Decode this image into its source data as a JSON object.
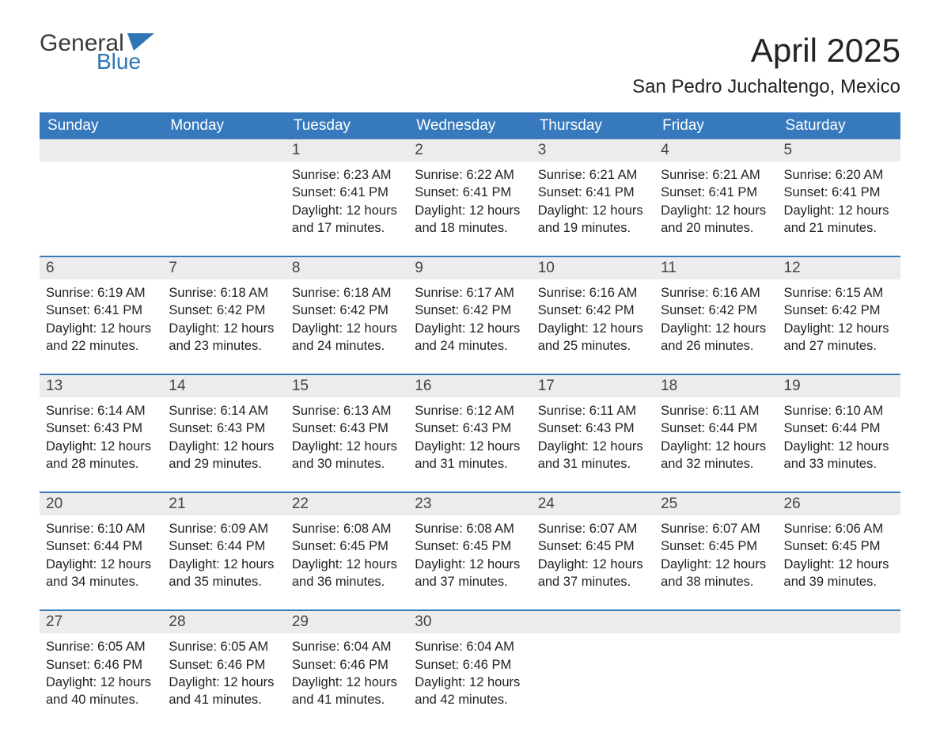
{
  "logo": {
    "text1": "General",
    "text2": "Blue",
    "flag_color": "#2f74b5",
    "text1_color": "#3a3a3a"
  },
  "header": {
    "month_title": "April 2025",
    "location": "San Pedro Juchaltengo, Mexico"
  },
  "styling": {
    "header_bg": "#3679bc",
    "header_text": "#ffffff",
    "daynum_bg": "#ececec",
    "week_border": "#3679bc",
    "body_text": "#222222",
    "page_bg": "#ffffff",
    "weekday_fontsize": 19,
    "daynum_fontsize": 19,
    "body_fontsize": 16.5,
    "title_fontsize": 42,
    "location_fontsize": 24
  },
  "weekdays": [
    "Sunday",
    "Monday",
    "Tuesday",
    "Wednesday",
    "Thursday",
    "Friday",
    "Saturday"
  ],
  "labels": {
    "sunrise": "Sunrise:",
    "sunset": "Sunset:",
    "daylight": "Daylight:"
  },
  "weeks": [
    [
      {
        "day": "",
        "sunrise": "",
        "sunset": "",
        "daylight": ""
      },
      {
        "day": "",
        "sunrise": "",
        "sunset": "",
        "daylight": ""
      },
      {
        "day": "1",
        "sunrise": "6:23 AM",
        "sunset": "6:41 PM",
        "daylight": "12 hours and 17 minutes."
      },
      {
        "day": "2",
        "sunrise": "6:22 AM",
        "sunset": "6:41 PM",
        "daylight": "12 hours and 18 minutes."
      },
      {
        "day": "3",
        "sunrise": "6:21 AM",
        "sunset": "6:41 PM",
        "daylight": "12 hours and 19 minutes."
      },
      {
        "day": "4",
        "sunrise": "6:21 AM",
        "sunset": "6:41 PM",
        "daylight": "12 hours and 20 minutes."
      },
      {
        "day": "5",
        "sunrise": "6:20 AM",
        "sunset": "6:41 PM",
        "daylight": "12 hours and 21 minutes."
      }
    ],
    [
      {
        "day": "6",
        "sunrise": "6:19 AM",
        "sunset": "6:41 PM",
        "daylight": "12 hours and 22 minutes."
      },
      {
        "day": "7",
        "sunrise": "6:18 AM",
        "sunset": "6:42 PM",
        "daylight": "12 hours and 23 minutes."
      },
      {
        "day": "8",
        "sunrise": "6:18 AM",
        "sunset": "6:42 PM",
        "daylight": "12 hours and 24 minutes."
      },
      {
        "day": "9",
        "sunrise": "6:17 AM",
        "sunset": "6:42 PM",
        "daylight": "12 hours and 24 minutes."
      },
      {
        "day": "10",
        "sunrise": "6:16 AM",
        "sunset": "6:42 PM",
        "daylight": "12 hours and 25 minutes."
      },
      {
        "day": "11",
        "sunrise": "6:16 AM",
        "sunset": "6:42 PM",
        "daylight": "12 hours and 26 minutes."
      },
      {
        "day": "12",
        "sunrise": "6:15 AM",
        "sunset": "6:42 PM",
        "daylight": "12 hours and 27 minutes."
      }
    ],
    [
      {
        "day": "13",
        "sunrise": "6:14 AM",
        "sunset": "6:43 PM",
        "daylight": "12 hours and 28 minutes."
      },
      {
        "day": "14",
        "sunrise": "6:14 AM",
        "sunset": "6:43 PM",
        "daylight": "12 hours and 29 minutes."
      },
      {
        "day": "15",
        "sunrise": "6:13 AM",
        "sunset": "6:43 PM",
        "daylight": "12 hours and 30 minutes."
      },
      {
        "day": "16",
        "sunrise": "6:12 AM",
        "sunset": "6:43 PM",
        "daylight": "12 hours and 31 minutes."
      },
      {
        "day": "17",
        "sunrise": "6:11 AM",
        "sunset": "6:43 PM",
        "daylight": "12 hours and 31 minutes."
      },
      {
        "day": "18",
        "sunrise": "6:11 AM",
        "sunset": "6:44 PM",
        "daylight": "12 hours and 32 minutes."
      },
      {
        "day": "19",
        "sunrise": "6:10 AM",
        "sunset": "6:44 PM",
        "daylight": "12 hours and 33 minutes."
      }
    ],
    [
      {
        "day": "20",
        "sunrise": "6:10 AM",
        "sunset": "6:44 PM",
        "daylight": "12 hours and 34 minutes."
      },
      {
        "day": "21",
        "sunrise": "6:09 AM",
        "sunset": "6:44 PM",
        "daylight": "12 hours and 35 minutes."
      },
      {
        "day": "22",
        "sunrise": "6:08 AM",
        "sunset": "6:45 PM",
        "daylight": "12 hours and 36 minutes."
      },
      {
        "day": "23",
        "sunrise": "6:08 AM",
        "sunset": "6:45 PM",
        "daylight": "12 hours and 37 minutes."
      },
      {
        "day": "24",
        "sunrise": "6:07 AM",
        "sunset": "6:45 PM",
        "daylight": "12 hours and 37 minutes."
      },
      {
        "day": "25",
        "sunrise": "6:07 AM",
        "sunset": "6:45 PM",
        "daylight": "12 hours and 38 minutes."
      },
      {
        "day": "26",
        "sunrise": "6:06 AM",
        "sunset": "6:45 PM",
        "daylight": "12 hours and 39 minutes."
      }
    ],
    [
      {
        "day": "27",
        "sunrise": "6:05 AM",
        "sunset": "6:46 PM",
        "daylight": "12 hours and 40 minutes."
      },
      {
        "day": "28",
        "sunrise": "6:05 AM",
        "sunset": "6:46 PM",
        "daylight": "12 hours and 41 minutes."
      },
      {
        "day": "29",
        "sunrise": "6:04 AM",
        "sunset": "6:46 PM",
        "daylight": "12 hours and 41 minutes."
      },
      {
        "day": "30",
        "sunrise": "6:04 AM",
        "sunset": "6:46 PM",
        "daylight": "12 hours and 42 minutes."
      },
      {
        "day": "",
        "sunrise": "",
        "sunset": "",
        "daylight": ""
      },
      {
        "day": "",
        "sunrise": "",
        "sunset": "",
        "daylight": ""
      },
      {
        "day": "",
        "sunrise": "",
        "sunset": "",
        "daylight": ""
      }
    ]
  ]
}
